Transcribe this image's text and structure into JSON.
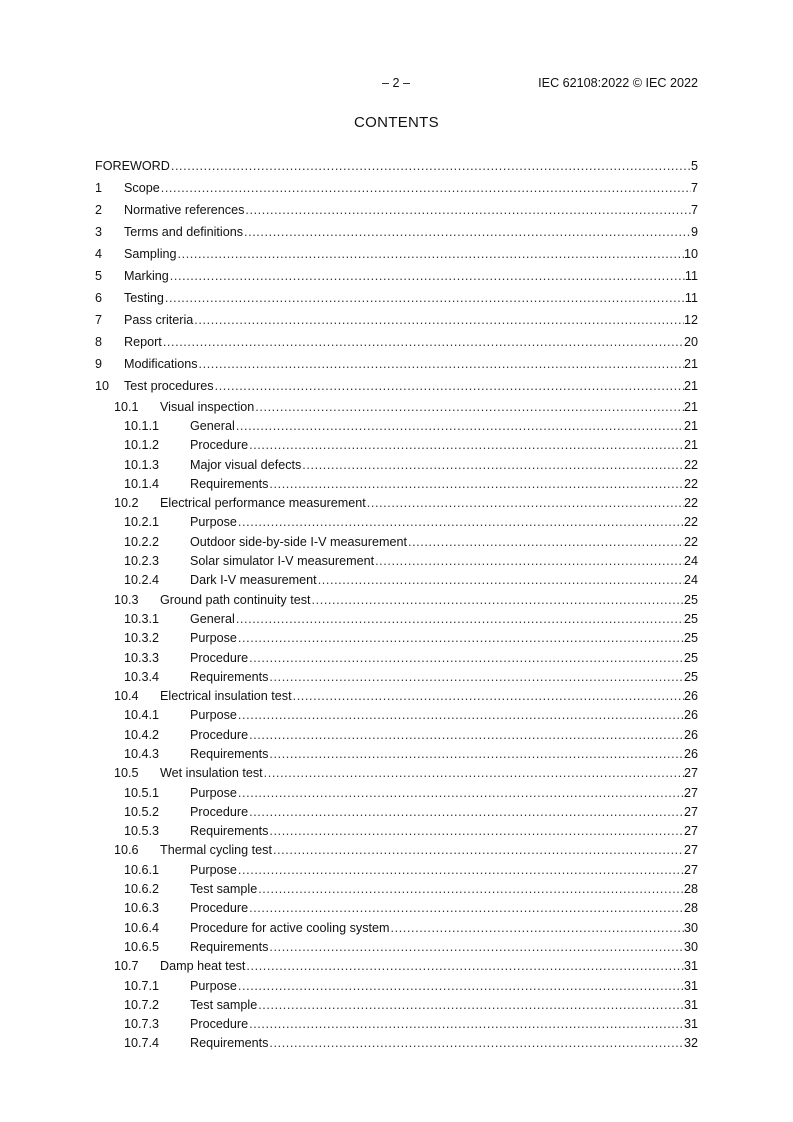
{
  "header": {
    "page": "– 2 –",
    "standard": "IEC 62108:2022 © IEC 2022"
  },
  "title": "CONTENTS",
  "toc": [
    {
      "level": 0,
      "num": "",
      "title": "FOREWORD",
      "page": "5"
    },
    {
      "level": 0,
      "num": "1",
      "title": "Scope",
      "page": "7"
    },
    {
      "level": 0,
      "num": "2",
      "title": "Normative references",
      "page": "7"
    },
    {
      "level": 0,
      "num": "3",
      "title": "Terms and definitions",
      "page": "9"
    },
    {
      "level": 0,
      "num": "4",
      "title": "Sampling",
      "page": "10"
    },
    {
      "level": 0,
      "num": "5",
      "title": "Marking",
      "page": "11"
    },
    {
      "level": 0,
      "num": "6",
      "title": "Testing",
      "page": "11"
    },
    {
      "level": 0,
      "num": "7",
      "title": "Pass criteria",
      "page": "12"
    },
    {
      "level": 0,
      "num": "8",
      "title": "Report",
      "page": "20"
    },
    {
      "level": 0,
      "num": "9",
      "title": "Modifications",
      "page": "21"
    },
    {
      "level": 0,
      "num": "10",
      "title": "Test procedures",
      "page": "21"
    },
    {
      "level": 1,
      "num": "10.1",
      "title": "Visual inspection",
      "page": "21"
    },
    {
      "level": 2,
      "num": "10.1.1",
      "title": "General",
      "page": "21"
    },
    {
      "level": 2,
      "num": "10.1.2",
      "title": "Procedure",
      "page": "21"
    },
    {
      "level": 2,
      "num": "10.1.3",
      "title": "Major visual defects",
      "page": "22"
    },
    {
      "level": 2,
      "num": "10.1.4",
      "title": "Requirements",
      "page": "22"
    },
    {
      "level": 1,
      "num": "10.2",
      "title": "Electrical performance measurement",
      "page": "22"
    },
    {
      "level": 2,
      "num": "10.2.1",
      "title": "Purpose",
      "page": "22"
    },
    {
      "level": 2,
      "num": "10.2.2",
      "title": "Outdoor side-by-side I-V measurement",
      "page": "22"
    },
    {
      "level": 2,
      "num": "10.2.3",
      "title": "Solar simulator I-V measurement",
      "page": "24"
    },
    {
      "level": 2,
      "num": "10.2.4",
      "title": "Dark I-V measurement",
      "page": "24"
    },
    {
      "level": 1,
      "num": "10.3",
      "title": "Ground path continuity test",
      "page": "25"
    },
    {
      "level": 2,
      "num": "10.3.1",
      "title": "General",
      "page": "25"
    },
    {
      "level": 2,
      "num": "10.3.2",
      "title": "Purpose",
      "page": "25"
    },
    {
      "level": 2,
      "num": "10.3.3",
      "title": "Procedure",
      "page": "25"
    },
    {
      "level": 2,
      "num": "10.3.4",
      "title": "Requirements",
      "page": "25"
    },
    {
      "level": 1,
      "num": "10.4",
      "title": "Electrical insulation test",
      "page": "26"
    },
    {
      "level": 2,
      "num": "10.4.1",
      "title": "Purpose",
      "page": "26"
    },
    {
      "level": 2,
      "num": "10.4.2",
      "title": "Procedure",
      "page": "26"
    },
    {
      "level": 2,
      "num": "10.4.3",
      "title": "Requirements",
      "page": "26"
    },
    {
      "level": 1,
      "num": "10.5",
      "title": "Wet insulation test",
      "page": "27"
    },
    {
      "level": 2,
      "num": "10.5.1",
      "title": "Purpose",
      "page": "27"
    },
    {
      "level": 2,
      "num": "10.5.2",
      "title": "Procedure",
      "page": "27"
    },
    {
      "level": 2,
      "num": "10.5.3",
      "title": "Requirements",
      "page": "27"
    },
    {
      "level": 1,
      "num": "10.6",
      "title": "Thermal cycling test",
      "page": "27"
    },
    {
      "level": 2,
      "num": "10.6.1",
      "title": "Purpose",
      "page": "27"
    },
    {
      "level": 2,
      "num": "10.6.2",
      "title": "Test sample",
      "page": "28"
    },
    {
      "level": 2,
      "num": "10.6.3",
      "title": "Procedure",
      "page": "28"
    },
    {
      "level": 2,
      "num": "10.6.4",
      "title": "Procedure for active cooling system",
      "page": "30"
    },
    {
      "level": 2,
      "num": "10.6.5",
      "title": "Requirements",
      "page": "30"
    },
    {
      "level": 1,
      "num": "10.7",
      "title": "Damp heat test",
      "page": "31"
    },
    {
      "level": 2,
      "num": "10.7.1",
      "title": "Purpose",
      "page": "31"
    },
    {
      "level": 2,
      "num": "10.7.2",
      "title": "Test sample",
      "page": "31"
    },
    {
      "level": 2,
      "num": "10.7.3",
      "title": "Procedure",
      "page": "31"
    },
    {
      "level": 2,
      "num": "10.7.4",
      "title": "Requirements",
      "page": "32"
    }
  ]
}
